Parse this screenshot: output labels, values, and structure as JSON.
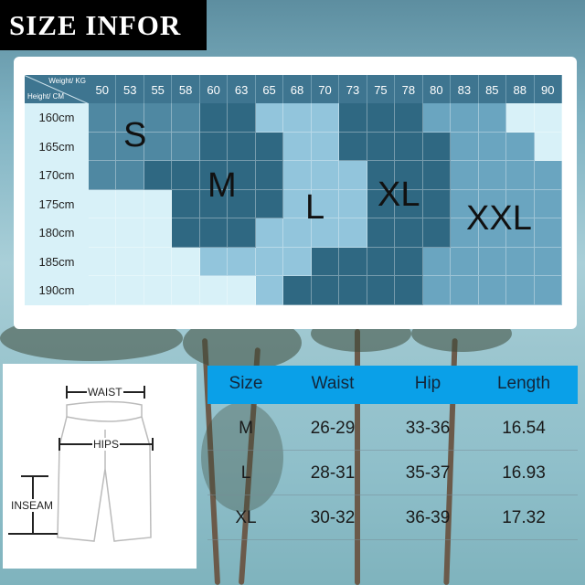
{
  "title": "SIZE INFOR",
  "chart": {
    "weight_label": "Weight/ KG",
    "height_label": "Height/ CM",
    "weights": [
      "50",
      "53",
      "55",
      "58",
      "60",
      "63",
      "65",
      "68",
      "70",
      "73",
      "75",
      "78",
      "80",
      "83",
      "85",
      "88",
      "90"
    ],
    "heights": [
      "160cm",
      "165cm",
      "170cm",
      "175cm",
      "180cm",
      "185cm",
      "190cm"
    ],
    "grid": [
      [
        "S",
        "S",
        "S",
        "S",
        "M",
        "M",
        "L",
        "L",
        "L",
        "XL",
        "XL",
        "XL",
        "XXL",
        "XXL",
        "XXL",
        "",
        ""
      ],
      [
        "S",
        "S",
        "S",
        "S",
        "M",
        "M",
        "M",
        "L",
        "L",
        "XL",
        "XL",
        "XL",
        "XL",
        "XXL",
        "XXL",
        "XXL",
        ""
      ],
      [
        "S",
        "S",
        "M",
        "M",
        "M",
        "M",
        "M",
        "L",
        "L",
        "L",
        "XL",
        "XL",
        "XL",
        "XXL",
        "XXL",
        "XXL",
        "XXL"
      ],
      [
        "",
        "",
        "",
        "M",
        "M",
        "M",
        "M",
        "L",
        "L",
        "L",
        "XL",
        "XL",
        "XL",
        "XXL",
        "XXL",
        "XXL",
        "XXL"
      ],
      [
        "",
        "",
        "",
        "M",
        "M",
        "M",
        "L",
        "L",
        "L",
        "L",
        "XL",
        "XL",
        "XL",
        "XXL",
        "XXL",
        "XXL",
        "XXL"
      ],
      [
        "",
        "",
        "",
        "",
        "L",
        "L",
        "L",
        "L",
        "XL",
        "XL",
        "XL",
        "XL",
        "XXL",
        "XXL",
        "XXL",
        "XXL",
        "XXL"
      ],
      [
        "",
        "",
        "",
        "",
        "",
        "",
        "L",
        "XL",
        "XL",
        "XL",
        "XL",
        "XL",
        "XXL",
        "XXL",
        "XXL",
        "XXL",
        "XXL"
      ]
    ],
    "size_labels": {
      "S": "S",
      "M": "M",
      "L": "L",
      "XL": "XL",
      "XXL": "XXL"
    },
    "colors": {
      "": "#d8f1f8",
      "S": "#4f88a2",
      "M": "#2f6882",
      "L": "#92c5dc",
      "XL": "#2f6882",
      "XXL": "#6aa5c0",
      "header": "#3e7590"
    }
  },
  "diagram": {
    "waist": "WAIST",
    "hips": "HIPS",
    "inseam": "INSEAM"
  },
  "table": {
    "headers": [
      "Size",
      "Waist",
      "Hip",
      "Length"
    ],
    "rows": [
      [
        "M",
        "26-29",
        "33-36",
        "16.54"
      ],
      [
        "L",
        "28-31",
        "35-37",
        "16.93"
      ],
      [
        "XL",
        "30-32",
        "36-39",
        "17.32"
      ]
    ],
    "header_color": "#0aa0e8"
  }
}
